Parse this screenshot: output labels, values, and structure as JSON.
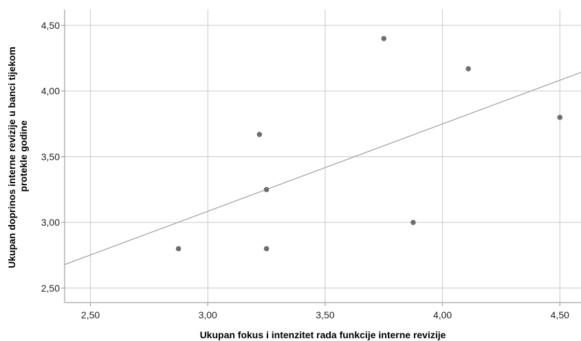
{
  "chart_data": {
    "type": "scatter",
    "title": "",
    "xlabel": "Ukupan fokus i intenzitet rada funkcije interne revizije",
    "ylabel": "Ukupan doprinos interne revizije u banci tijekom protekle godine",
    "ylabel_lines": [
      "Ukupan doprinos interne revizije u banci tijekom",
      "protekle godine"
    ],
    "xlim": [
      2.39,
      4.59
    ],
    "ylim": [
      2.39,
      4.62
    ],
    "x_ticks": [
      2.5,
      3.0,
      3.5,
      4.0,
      4.5
    ],
    "y_ticks": [
      2.5,
      3.0,
      3.5,
      4.0,
      4.5
    ],
    "x_tick_labels": [
      "2,50",
      "3,00",
      "3,50",
      "4,00",
      "4,50"
    ],
    "y_tick_labels": [
      "2,50",
      "3,00",
      "3,50",
      "4,00",
      "4,50"
    ],
    "grid": true,
    "legend": "none",
    "points": [
      {
        "x": 2.875,
        "y": 2.8
      },
      {
        "x": 3.22,
        "y": 3.67
      },
      {
        "x": 3.25,
        "y": 3.25
      },
      {
        "x": 3.25,
        "y": 2.8
      },
      {
        "x": 3.75,
        "y": 4.4
      },
      {
        "x": 3.875,
        "y": 3.0
      },
      {
        "x": 4.11,
        "y": 4.17
      },
      {
        "x": 4.5,
        "y": 3.8
      }
    ],
    "fit_line": {
      "slope": 0.665,
      "intercept": 1.09
    },
    "colors": {
      "point": "#6e6e6e",
      "fit_line": "#a3a3a3",
      "grid": "#c8c8c8",
      "axis": "#8c8c8c"
    }
  }
}
